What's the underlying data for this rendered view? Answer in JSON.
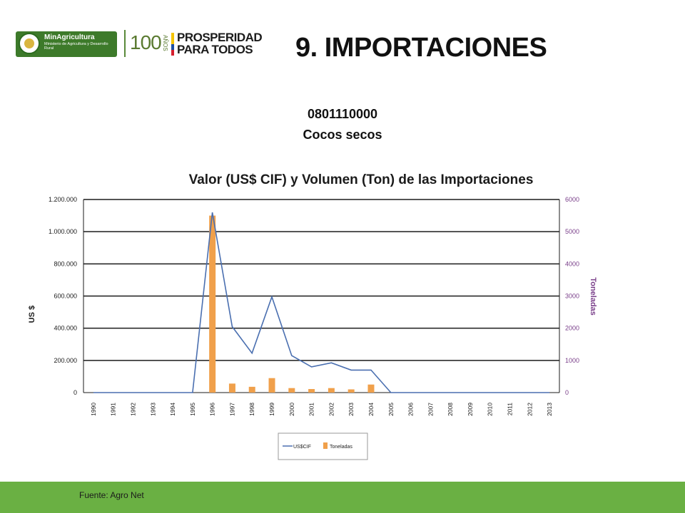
{
  "header": {
    "ministry_name": "MinAgricultura",
    "ministry_sub": "Ministerio de Agricultura y Desarrollo Rural",
    "hundred": "100",
    "anos": "AÑOS",
    "prosperity_line1": "PROSPERIDAD",
    "prosperity_line2": "PARA TODOS"
  },
  "slide": {
    "title": "9. IMPORTACIONES",
    "code": "0801110000",
    "product": "Cocos secos"
  },
  "colors": {
    "line": "#4a6fb0",
    "bar": "#f0a04b",
    "footer": "#6ab043",
    "right_axis": "#7a3f8a"
  },
  "chart_data": {
    "type": "bar",
    "title": "Valor (US$ CIF) y Volumen (Ton) de las Importaciones",
    "categories": [
      "1990",
      "1991",
      "1992",
      "1993",
      "1994",
      "1995",
      "1996",
      "1997",
      "1998",
      "1999",
      "2000",
      "2001",
      "2002",
      "2003",
      "2004",
      "2005",
      "2006",
      "2007",
      "2008",
      "2009",
      "2010",
      "2011",
      "2012",
      "2013"
    ],
    "ylabel": "US $",
    "y2label": "Toneladas",
    "ylim": [
      0,
      1200000
    ],
    "y2lim": [
      0,
      6000
    ],
    "yticks": [
      "0",
      "200.000",
      "400.000",
      "600.000",
      "800.000",
      "1.000.000",
      "1.200.000"
    ],
    "y2ticks": [
      "0",
      "1000",
      "2000",
      "3000",
      "4000",
      "5000",
      "6000"
    ],
    "grid": true,
    "legend_position": "bottom",
    "series": [
      {
        "name": "US$CIF",
        "type": "line",
        "axis": "left",
        "values": [
          0,
          0,
          0,
          0,
          0,
          0,
          1120000,
          410000,
          245000,
          595000,
          230000,
          160000,
          185000,
          140000,
          140000,
          0,
          0,
          0,
          0,
          0,
          0,
          0,
          0,
          0
        ]
      },
      {
        "name": "Toneladas",
        "type": "bar",
        "axis": "right",
        "values": [
          0,
          0,
          0,
          0,
          0,
          0,
          5500,
          280,
          180,
          450,
          140,
          110,
          140,
          100,
          250,
          0,
          0,
          0,
          0,
          0,
          0,
          0,
          0,
          0
        ]
      }
    ]
  },
  "footer": {
    "source": "Fuente: Agro Net"
  }
}
